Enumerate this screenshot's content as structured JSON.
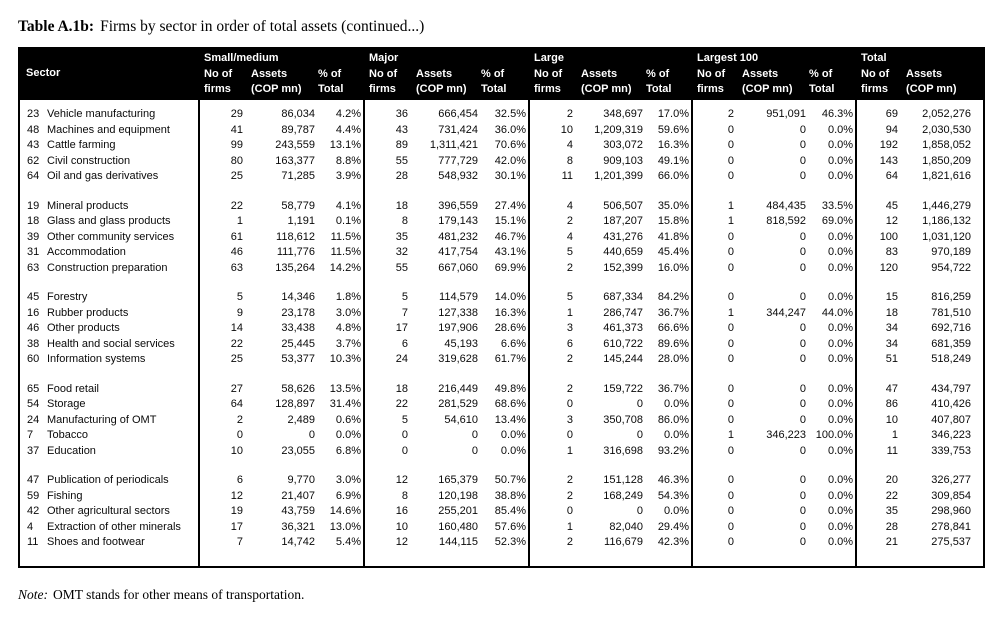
{
  "page": {
    "title_label": "Table A.1b:",
    "title_text": "Firms by sector in order of total assets (continued...)",
    "note_label": "Note:",
    "note_text": "OMT stands for other means of transportation."
  },
  "colors": {
    "header_bg": "#000000",
    "header_text": "#ffffff",
    "body_text": "#0a0a0a"
  },
  "header": {
    "sector": "Sector",
    "groups": [
      {
        "name": "Small/medium",
        "sub": [
          [
            "No of",
            "firms"
          ],
          [
            "Assets",
            "(COP mn)"
          ],
          [
            "% of",
            "Total"
          ]
        ]
      },
      {
        "name": "Major",
        "sub": [
          [
            "No of",
            "firms"
          ],
          [
            "Assets",
            "(COP mn)"
          ],
          [
            "% of",
            "Total"
          ]
        ]
      },
      {
        "name": "Large",
        "sub": [
          [
            "No of",
            "firms"
          ],
          [
            "Assets",
            "(COP mn)"
          ],
          [
            "% of",
            "Total"
          ]
        ]
      },
      {
        "name": "Largest 100",
        "sub": [
          [
            "No of",
            "firms"
          ],
          [
            "Assets",
            "(COP mn)"
          ],
          [
            "% of",
            "Total"
          ]
        ]
      },
      {
        "name": "Total",
        "sub": [
          [
            "No of",
            "firms"
          ],
          [
            "Assets",
            "(COP mn)"
          ]
        ]
      }
    ]
  },
  "row_groups": [
    [
      {
        "id": "23",
        "name": "Vehicle manufacturing",
        "cells": [
          "29",
          "86,034",
          "4.2%",
          "36",
          "666,454",
          "32.5%",
          "2",
          "348,697",
          "17.0%",
          "2",
          "951,091",
          "46.3%",
          "69",
          "2,052,276"
        ]
      },
      {
        "id": "48",
        "name": "Machines and equipment",
        "cells": [
          "41",
          "89,787",
          "4.4%",
          "43",
          "731,424",
          "36.0%",
          "10",
          "1,209,319",
          "59.6%",
          "0",
          "0",
          "0.0%",
          "94",
          "2,030,530"
        ]
      },
      {
        "id": "43",
        "name": "Cattle farming",
        "cells": [
          "99",
          "243,559",
          "13.1%",
          "89",
          "1,311,421",
          "70.6%",
          "4",
          "303,072",
          "16.3%",
          "0",
          "0",
          "0.0%",
          "192",
          "1,858,052"
        ]
      },
      {
        "id": "62",
        "name": "Civil construction",
        "cells": [
          "80",
          "163,377",
          "8.8%",
          "55",
          "777,729",
          "42.0%",
          "8",
          "909,103",
          "49.1%",
          "0",
          "0",
          "0.0%",
          "143",
          "1,850,209"
        ]
      },
      {
        "id": "64",
        "name": "Oil and gas derivatives",
        "cells": [
          "25",
          "71,285",
          "3.9%",
          "28",
          "548,932",
          "30.1%",
          "11",
          "1,201,399",
          "66.0%",
          "0",
          "0",
          "0.0%",
          "64",
          "1,821,616"
        ]
      }
    ],
    [
      {
        "id": "19",
        "name": "Mineral products",
        "cells": [
          "22",
          "58,779",
          "4.1%",
          "18",
          "396,559",
          "27.4%",
          "4",
          "506,507",
          "35.0%",
          "1",
          "484,435",
          "33.5%",
          "45",
          "1,446,279"
        ]
      },
      {
        "id": "18",
        "name": "Glass and glass products",
        "cells": [
          "1",
          "1,191",
          "0.1%",
          "8",
          "179,143",
          "15.1%",
          "2",
          "187,207",
          "15.8%",
          "1",
          "818,592",
          "69.0%",
          "12",
          "1,186,132"
        ]
      },
      {
        "id": "39",
        "name": "Other community services",
        "cells": [
          "61",
          "118,612",
          "11.5%",
          "35",
          "481,232",
          "46.7%",
          "4",
          "431,276",
          "41.8%",
          "0",
          "0",
          "0.0%",
          "100",
          "1,031,120"
        ]
      },
      {
        "id": "31",
        "name": "Accommodation",
        "cells": [
          "46",
          "111,776",
          "11.5%",
          "32",
          "417,754",
          "43.1%",
          "5",
          "440,659",
          "45.4%",
          "0",
          "0",
          "0.0%",
          "83",
          "970,189"
        ]
      },
      {
        "id": "63",
        "name": "Construction preparation",
        "cells": [
          "63",
          "135,264",
          "14.2%",
          "55",
          "667,060",
          "69.9%",
          "2",
          "152,399",
          "16.0%",
          "0",
          "0",
          "0.0%",
          "120",
          "954,722"
        ]
      }
    ],
    [
      {
        "id": "45",
        "name": "Forestry",
        "cells": [
          "5",
          "14,346",
          "1.8%",
          "5",
          "114,579",
          "14.0%",
          "5",
          "687,334",
          "84.2%",
          "0",
          "0",
          "0.0%",
          "15",
          "816,259"
        ]
      },
      {
        "id": "16",
        "name": "Rubber products",
        "cells": [
          "9",
          "23,178",
          "3.0%",
          "7",
          "127,338",
          "16.3%",
          "1",
          "286,747",
          "36.7%",
          "1",
          "344,247",
          "44.0%",
          "18",
          "781,510"
        ]
      },
      {
        "id": "46",
        "name": "Other products",
        "cells": [
          "14",
          "33,438",
          "4.8%",
          "17",
          "197,906",
          "28.6%",
          "3",
          "461,373",
          "66.6%",
          "0",
          "0",
          "0.0%",
          "34",
          "692,716"
        ]
      },
      {
        "id": "38",
        "name": "Health and social services",
        "cells": [
          "22",
          "25,445",
          "3.7%",
          "6",
          "45,193",
          "6.6%",
          "6",
          "610,722",
          "89.6%",
          "0",
          "0",
          "0.0%",
          "34",
          "681,359"
        ]
      },
      {
        "id": "60",
        "name": "Information systems",
        "cells": [
          "25",
          "53,377",
          "10.3%",
          "24",
          "319,628",
          "61.7%",
          "2",
          "145,244",
          "28.0%",
          "0",
          "0",
          "0.0%",
          "51",
          "518,249"
        ]
      }
    ],
    [
      {
        "id": "65",
        "name": "Food retail",
        "cells": [
          "27",
          "58,626",
          "13.5%",
          "18",
          "216,449",
          "49.8%",
          "2",
          "159,722",
          "36.7%",
          "0",
          "0",
          "0.0%",
          "47",
          "434,797"
        ]
      },
      {
        "id": "54",
        "name": "Storage",
        "cells": [
          "64",
          "128,897",
          "31.4%",
          "22",
          "281,529",
          "68.6%",
          "0",
          "0",
          "0.0%",
          "0",
          "0",
          "0.0%",
          "86",
          "410,426"
        ]
      },
      {
        "id": "24",
        "name": "Manufacturing of OMT",
        "cells": [
          "2",
          "2,489",
          "0.6%",
          "5",
          "54,610",
          "13.4%",
          "3",
          "350,708",
          "86.0%",
          "0",
          "0",
          "0.0%",
          "10",
          "407,807"
        ]
      },
      {
        "id": "7",
        "name": "Tobacco",
        "cells": [
          "0",
          "0",
          "0.0%",
          "0",
          "0",
          "0.0%",
          "0",
          "0",
          "0.0%",
          "1",
          "346,223",
          "100.0%",
          "1",
          "346,223"
        ]
      },
      {
        "id": "37",
        "name": "Education",
        "cells": [
          "10",
          "23,055",
          "6.8%",
          "0",
          "0",
          "0.0%",
          "1",
          "316,698",
          "93.2%",
          "0",
          "0",
          "0.0%",
          "11",
          "339,753"
        ]
      }
    ],
    [
      {
        "id": "47",
        "name": "Publication of periodicals",
        "cells": [
          "6",
          "9,770",
          "3.0%",
          "12",
          "165,379",
          "50.7%",
          "2",
          "151,128",
          "46.3%",
          "0",
          "0",
          "0.0%",
          "20",
          "326,277"
        ]
      },
      {
        "id": "59",
        "name": "Fishing",
        "cells": [
          "12",
          "21,407",
          "6.9%",
          "8",
          "120,198",
          "38.8%",
          "2",
          "168,249",
          "54.3%",
          "0",
          "0",
          "0.0%",
          "22",
          "309,854"
        ]
      },
      {
        "id": "42",
        "name": "Other agricultural sectors",
        "cells": [
          "19",
          "43,759",
          "14.6%",
          "16",
          "255,201",
          "85.4%",
          "0",
          "0",
          "0.0%",
          "0",
          "0",
          "0.0%",
          "35",
          "298,960"
        ]
      },
      {
        "id": "4",
        "name": "Extraction of other minerals",
        "cells": [
          "17",
          "36,321",
          "13.0%",
          "10",
          "160,480",
          "57.6%",
          "1",
          "82,040",
          "29.4%",
          "0",
          "0",
          "0.0%",
          "28",
          "278,841"
        ]
      },
      {
        "id": "11",
        "name": "Shoes and footwear",
        "cells": [
          "7",
          "14,742",
          "5.4%",
          "12",
          "144,115",
          "52.3%",
          "2",
          "116,679",
          "42.3%",
          "0",
          "0",
          "0.0%",
          "21",
          "275,537"
        ]
      }
    ]
  ]
}
